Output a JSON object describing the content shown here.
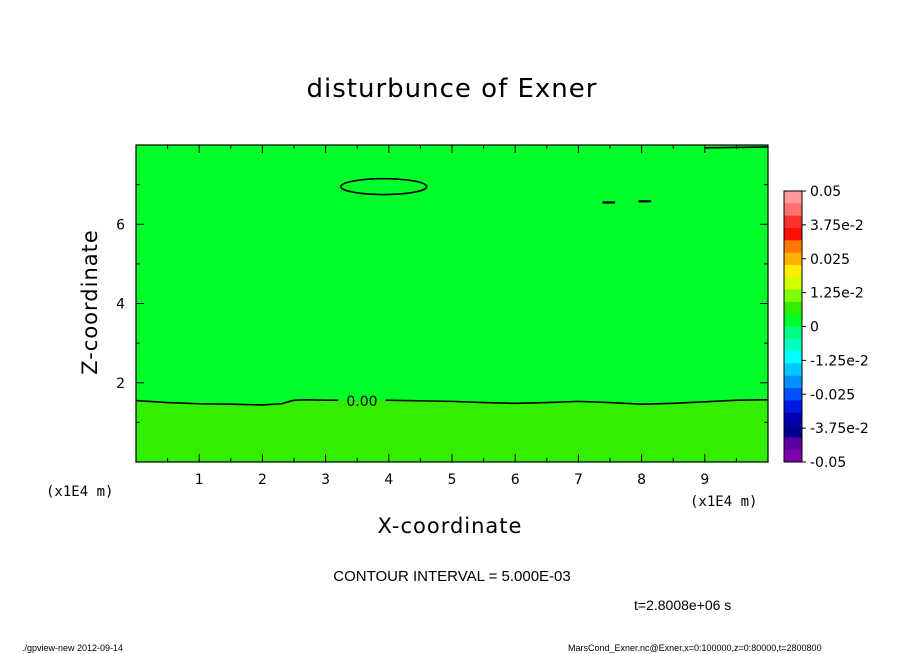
{
  "chart_data": {
    "type": "heatmap",
    "title": "disturbunce of Exner",
    "xlabel": "X-coordinate",
    "ylabel": "Z-coordinate",
    "x_unit": "(x1E4 m)",
    "xlim": [
      0,
      10
    ],
    "ylim": [
      0,
      8
    ],
    "x_ticks": [
      1,
      2,
      3,
      4,
      5,
      6,
      7,
      8,
      9
    ],
    "y_ticks": [
      2,
      4,
      6
    ],
    "contour_label": "0.00",
    "contour_interval_text": "CONTOUR INTERVAL = 5.000E-03",
    "time_text": "t=2.8008e+06 s",
    "zero_contour": {
      "x": [
        0,
        0.5,
        1.0,
        1.5,
        2.0,
        2.3,
        2.5,
        2.7,
        3.0,
        5.0,
        5.5,
        6.0,
        6.5,
        7.0,
        7.5,
        8.0,
        8.5,
        9.0,
        9.5,
        10.0
      ],
      "z": [
        1.55,
        1.5,
        1.47,
        1.46,
        1.44,
        1.47,
        1.56,
        1.57,
        1.56,
        1.53,
        1.5,
        1.48,
        1.5,
        1.53,
        1.5,
        1.46,
        1.48,
        1.52,
        1.56,
        1.57
      ]
    },
    "regions": [
      {
        "z_range": [
          0,
          1.5
        ],
        "level": "0 to 1.25e-2",
        "color": "#33ee00"
      },
      {
        "z_range": [
          1.5,
          8
        ],
        "level": "-1.25e-2 to 0",
        "color": "#00ff2a"
      }
    ],
    "colorbar": {
      "labels": [
        "0.05",
        "3.75e-2",
        "0.025",
        "1.25e-2",
        "0",
        "-1.25e-2",
        "-0.025",
        "-3.75e-2",
        "-0.05"
      ],
      "colors": [
        "#ff9a9a",
        "#ff7070",
        "#ff3030",
        "#ff1000",
        "#ff7a00",
        "#ffb000",
        "#ffee00",
        "#d0ff00",
        "#7cff00",
        "#33ee00",
        "#00ff2a",
        "#00ff80",
        "#00ffc0",
        "#00ffff",
        "#00c8ff",
        "#0090ff",
        "#0050ff",
        "#0018e0",
        "#0000b0",
        "#000090",
        "#5a00a0",
        "#8000b0"
      ]
    }
  },
  "footer": {
    "left": "./gpview-new  2012-09-14",
    "right": "MarsCond_Exner.nc@Exner,x=0:100000,z=0:80000,t=2800800"
  }
}
